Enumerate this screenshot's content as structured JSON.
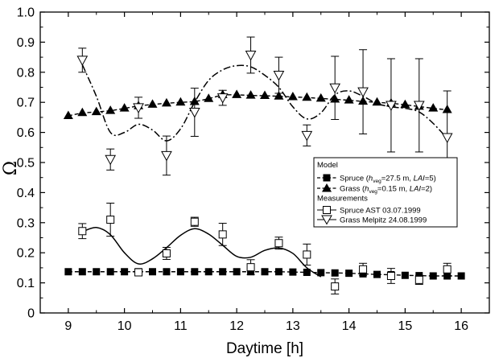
{
  "chart_data": {
    "type": "line",
    "title": "",
    "xlabel": "Daytime  [h]",
    "ylabel": "Ω",
    "xlim": [
      8.5,
      16.5
    ],
    "ylim": [
      0,
      1.0
    ],
    "xticks": [
      "9",
      "10",
      "11",
      "12",
      "13",
      "14",
      "15",
      "16"
    ],
    "yticks": [
      "0",
      "0.1",
      "0.2",
      "0.3",
      "0.4",
      "0.5",
      "0.6",
      "0.7",
      "0.8",
      "0.9",
      "1.0"
    ],
    "grid": false,
    "legend_position": "center-right",
    "legend": {
      "model_heading": "Model",
      "measurements_heading": "Measurements",
      "spruce_model": {
        "prefix": "Spruce (",
        "h": "h",
        "sub": "veg",
        "mid": "=27.5 m, ",
        "lai": "LAI",
        "suffix": "=5)"
      },
      "grass_model": {
        "prefix": "Grass (",
        "h": "h",
        "sub": "veg",
        "mid": "=0.15 m, ",
        "lai": "LAI",
        "suffix": "=2)"
      },
      "spruce_meas": "Spruce  AST 03.07.1999",
      "grass_meas": "Grass  Melpitz 24.08.1999"
    },
    "series": [
      {
        "name": "Spruce (hveg=27.5 m, LAI=5)",
        "kind": "model",
        "marker": "filled-square",
        "line": "dashed",
        "x": [
          9.0,
          9.25,
          9.5,
          9.75,
          10.0,
          10.25,
          10.5,
          10.75,
          11.0,
          11.25,
          11.5,
          11.75,
          12.0,
          12.25,
          12.5,
          12.75,
          13.0,
          13.25,
          13.5,
          13.75,
          14.0,
          14.25,
          14.5,
          14.75,
          15.0,
          15.25,
          15.5,
          15.75,
          16.0
        ],
        "y": [
          0.137,
          0.137,
          0.137,
          0.137,
          0.137,
          0.137,
          0.137,
          0.137,
          0.137,
          0.137,
          0.137,
          0.137,
          0.137,
          0.137,
          0.137,
          0.137,
          0.136,
          0.135,
          0.134,
          0.133,
          0.132,
          0.13,
          0.128,
          0.127,
          0.125,
          0.124,
          0.123,
          0.123,
          0.123
        ]
      },
      {
        "name": "Grass (hveg=0.15 m, LAI=2)",
        "kind": "model",
        "marker": "filled-triangle",
        "line": "dashed",
        "x": [
          9.0,
          9.25,
          9.5,
          9.75,
          10.0,
          10.25,
          10.5,
          10.75,
          11.0,
          11.25,
          11.5,
          11.75,
          12.0,
          12.25,
          12.5,
          12.75,
          13.0,
          13.25,
          13.5,
          13.75,
          14.0,
          14.25,
          14.5,
          14.75,
          15.0,
          15.25,
          15.5,
          15.75
        ],
        "y": [
          0.655,
          0.665,
          0.668,
          0.672,
          0.68,
          0.688,
          0.693,
          0.697,
          0.7,
          0.702,
          0.712,
          0.725,
          0.725,
          0.723,
          0.722,
          0.72,
          0.718,
          0.716,
          0.713,
          0.71,
          0.707,
          0.703,
          0.7,
          0.697,
          0.692,
          0.686,
          0.68,
          0.675
        ]
      },
      {
        "name": "Spruce  AST 03.07.1999",
        "kind": "measurement",
        "marker": "open-square",
        "fit_line": "solid",
        "x": [
          9.25,
          9.75,
          10.25,
          10.75,
          11.25,
          11.75,
          12.25,
          12.75,
          13.25,
          13.75,
          14.25,
          14.75,
          15.25,
          15.75
        ],
        "y": [
          0.272,
          0.31,
          0.135,
          0.198,
          0.303,
          0.261,
          0.152,
          0.232,
          0.194,
          0.088,
          0.145,
          0.123,
          0.11,
          0.145
        ],
        "err": [
          0.025,
          0.055,
          0.01,
          0.02,
          0.015,
          0.037,
          0.025,
          0.02,
          0.035,
          0.025,
          0.02,
          0.025,
          0.015,
          0.02
        ],
        "fit_x": [
          9.25,
          9.5,
          9.75,
          10.0,
          10.25,
          10.5,
          10.75,
          11.0,
          11.25,
          11.5,
          11.75,
          12.0,
          12.25,
          12.5,
          12.75,
          13.0,
          13.25,
          13.5
        ],
        "fit_y": [
          0.27,
          0.284,
          0.26,
          0.2,
          0.163,
          0.18,
          0.217,
          0.258,
          0.28,
          0.262,
          0.225,
          0.188,
          0.185,
          0.208,
          0.216,
          0.198,
          0.15,
          0.12
        ]
      },
      {
        "name": "Grass  Melpitz 24.08.1999",
        "kind": "measurement",
        "marker": "open-triangle-down",
        "fit_line": "dash-dot",
        "x": [
          9.25,
          9.75,
          10.25,
          10.75,
          11.25,
          11.75,
          12.25,
          12.75,
          13.25,
          13.75,
          14.25,
          14.75,
          15.25,
          15.75
        ],
        "y": [
          0.84,
          0.51,
          0.682,
          0.523,
          0.667,
          0.715,
          0.857,
          0.79,
          0.59,
          0.748,
          0.735,
          0.69,
          0.69,
          0.583
        ],
        "err": [
          0.04,
          0.035,
          0.035,
          0.065,
          0.08,
          0.025,
          0.06,
          0.06,
          0.035,
          0.105,
          0.14,
          0.155,
          0.155,
          0.155
        ],
        "fit_x": [
          9.25,
          9.5,
          9.75,
          10.0,
          10.25,
          10.5,
          10.75,
          11.0,
          11.25,
          11.5,
          11.75,
          12.0,
          12.25,
          12.5,
          12.75,
          13.0,
          13.25,
          13.5,
          13.75,
          14.0,
          14.25,
          14.5,
          14.75,
          15.0,
          15.25,
          15.5,
          15.75
        ],
        "fit_y": [
          0.825,
          0.72,
          0.6,
          0.6,
          0.627,
          0.608,
          0.572,
          0.612,
          0.7,
          0.773,
          0.808,
          0.822,
          0.818,
          0.79,
          0.75,
          0.685,
          0.645,
          0.665,
          0.725,
          0.738,
          0.72,
          0.696,
          0.685,
          0.68,
          0.668,
          0.63,
          0.58
        ]
      }
    ]
  }
}
